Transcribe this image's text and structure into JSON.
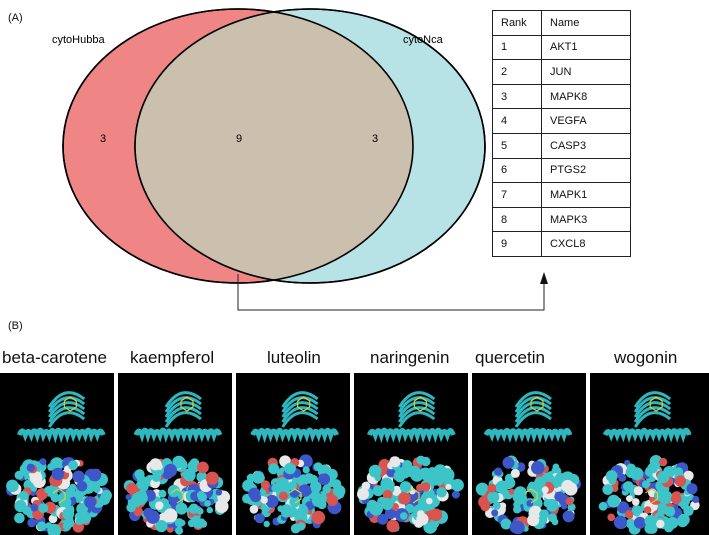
{
  "panel_a_label": "(A)",
  "panel_b_label": "(B)",
  "venn": {
    "left_set": {
      "label": "cytoHubba",
      "count": "3",
      "color": "#ef8585"
    },
    "right_set": {
      "label": "cytoNca",
      "count": "3",
      "color": "#b7e2e6"
    },
    "overlap": {
      "count": "9",
      "color": "#cbbfad"
    }
  },
  "rank_table": {
    "headers": [
      "Rank",
      "Name"
    ],
    "rows": [
      [
        "1",
        "AKT1"
      ],
      [
        "2",
        "JUN"
      ],
      [
        "3",
        "MAPK8"
      ],
      [
        "4",
        "VEGFA"
      ],
      [
        "5",
        "CASP3"
      ],
      [
        "6",
        "PTGS2"
      ],
      [
        "7",
        "MAPK1"
      ],
      [
        "8",
        "MAPK3"
      ],
      [
        "9",
        "CXCL8"
      ]
    ]
  },
  "molecules": [
    "beta-carotene",
    "kaempferol",
    "luteolin",
    "naringenin",
    "quercetin",
    "wogonin"
  ],
  "colors": {
    "protein_ribbon": "#2fb7bf",
    "ligand": "#d4d23a",
    "surface_oxygen": "#d9534f",
    "surface_nitrogen": "#3d57c9",
    "surface_carbon": "#3cc4c9",
    "background": "#000000"
  }
}
